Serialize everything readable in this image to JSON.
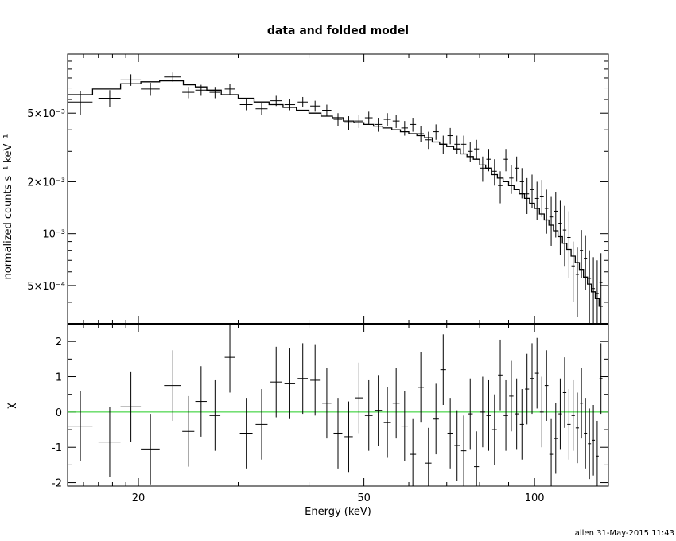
{
  "chart_data": [
    {
      "type": "line",
      "panel": "top",
      "title": "data and folded model",
      "xlabel": "",
      "ylabel": "normalized counts s⁻¹ keV⁻¹",
      "xscale": "log",
      "yscale": "log",
      "xlim": [
        15,
        135
      ],
      "ylim": [
        0.0003,
        0.011
      ],
      "ytick_labels": [
        {
          "value": 0.005,
          "label": "5×10⁻³"
        },
        {
          "value": 0.002,
          "label": "2×10⁻³"
        },
        {
          "value": 0.001,
          "label": "10⁻³"
        },
        {
          "value": 0.0005,
          "label": "5×10⁻⁴"
        }
      ],
      "series": [
        {
          "kind": "data-crosses",
          "x": [
            15.8,
            17.8,
            19.4,
            21.0,
            23.0,
            24.5,
            25.8,
            27.3,
            29.0,
            31.0,
            33.0,
            35.0,
            37.0,
            39.0,
            41.0,
            43.0,
            45.0,
            47.0,
            49.0,
            51.0,
            53.0,
            55.0,
            57.0,
            59.0,
            61.0,
            63.0,
            65.0,
            67.0,
            69.0,
            71.0,
            73.0,
            75.0,
            77.0,
            79.0,
            81.0,
            83.0,
            85.0,
            87.0,
            89.0,
            91.0,
            93.0,
            95.0,
            97.0,
            99.0,
            101.0,
            103.0,
            105.0,
            107.0,
            109.0,
            111.0,
            113.0,
            115.0,
            117.0,
            119.0,
            121.0,
            123.0,
            125.0,
            127.0,
            129.0,
            131.0
          ],
          "y": [
            0.0058,
            0.0061,
            0.0078,
            0.0069,
            0.0081,
            0.0066,
            0.0068,
            0.0066,
            0.0069,
            0.0056,
            0.0053,
            0.0059,
            0.0056,
            0.0058,
            0.0055,
            0.0052,
            0.0046,
            0.0044,
            0.0045,
            0.0047,
            0.0043,
            0.0046,
            0.0045,
            0.0041,
            0.0043,
            0.0038,
            0.0035,
            0.0039,
            0.0033,
            0.0037,
            0.0033,
            0.0033,
            0.003,
            0.0031,
            0.0024,
            0.0027,
            0.0023,
            0.0019,
            0.0027,
            0.0021,
            0.0024,
            0.002,
            0.0017,
            0.0018,
            0.0016,
            0.00165,
            0.0014,
            0.00125,
            0.00135,
            0.00115,
            0.00105,
            0.00095,
            0.00065,
            0.00058,
            0.0008,
            0.00072,
            0.00055,
            0.00048,
            0.00045,
            0.00052
          ],
          "xerr": [
            0.8,
            0.8,
            0.8,
            0.8,
            0.8,
            0.6,
            0.6,
            0.6,
            0.6,
            0.8,
            0.8,
            0.8,
            0.8,
            0.8,
            0.8,
            0.8,
            0.8,
            0.8,
            0.8,
            0.8,
            0.8,
            0.8,
            0.8,
            0.8,
            0.8,
            0.8,
            0.8,
            0.8,
            0.8,
            0.8,
            0.8,
            0.8,
            0.8,
            0.8,
            0.8,
            0.8,
            0.8,
            0.8,
            0.8,
            0.8,
            0.8,
            0.8,
            0.8,
            0.8,
            0.8,
            0.8,
            0.8,
            0.8,
            0.8,
            0.8,
            0.8,
            0.8,
            0.8,
            0.8,
            0.8,
            0.8,
            0.8,
            0.8,
            0.8,
            0.8
          ],
          "yerr": [
            0.0009,
            0.0007,
            0.0006,
            0.0006,
            0.0005,
            0.0005,
            0.0005,
            0.0005,
            0.0005,
            0.0004,
            0.0004,
            0.0004,
            0.0004,
            0.0004,
            0.0004,
            0.0004,
            0.0004,
            0.0004,
            0.0004,
            0.0004,
            0.0004,
            0.0004,
            0.0004,
            0.0004,
            0.0004,
            0.0004,
            0.0004,
            0.0004,
            0.0004,
            0.0004,
            0.0004,
            0.0004,
            0.0004,
            0.0004,
            0.0004,
            0.0004,
            0.0004,
            0.0004,
            0.0004,
            0.0004,
            0.0004,
            0.0004,
            0.0004,
            0.0004,
            0.0004,
            0.0004,
            0.0004,
            0.0004,
            0.0004,
            0.0004,
            0.0004,
            0.0004,
            0.00025,
            0.00025,
            0.00025,
            0.00025,
            0.00025,
            0.00025,
            0.00025,
            0.00025
          ]
        },
        {
          "kind": "model-step",
          "x_edges": [
            15,
            16.6,
            18.6,
            20.2,
            21.8,
            24.0,
            25.2,
            26.4,
            28.0,
            30.0,
            32.0,
            34.0,
            36.0,
            38.0,
            40.0,
            42.0,
            44.0,
            46.0,
            48.0,
            50.0,
            52.0,
            54.0,
            56.0,
            58.0,
            60.0,
            62.0,
            64.0,
            66.0,
            68.0,
            70.0,
            72.0,
            74.0,
            76.0,
            78.0,
            80.0,
            82.0,
            84.0,
            86.0,
            88.0,
            90.0,
            92.0,
            94.0,
            96.0,
            98.0,
            100.0,
            102.0,
            104.0,
            106.0,
            108.0,
            110.0,
            112.0,
            114.0,
            116.0,
            118.0,
            120.0,
            122.0,
            124.0,
            126.0,
            128.0,
            130.0,
            132.0
          ],
          "y": [
            0.0064,
            0.0069,
            0.0074,
            0.0076,
            0.0077,
            0.0073,
            0.0071,
            0.0068,
            0.0064,
            0.0061,
            0.0058,
            0.0056,
            0.0054,
            0.0052,
            0.005,
            0.0048,
            0.0047,
            0.0045,
            0.0044,
            0.0043,
            0.0042,
            0.0041,
            0.004,
            0.0039,
            0.0038,
            0.0037,
            0.0036,
            0.0034,
            0.0033,
            0.0032,
            0.0031,
            0.0029,
            0.0028,
            0.0027,
            0.0025,
            0.0024,
            0.0022,
            0.0021,
            0.002,
            0.0019,
            0.0018,
            0.0017,
            0.0016,
            0.0015,
            0.0014,
            0.0013,
            0.0012,
            0.00112,
            0.00104,
            0.00096,
            0.00088,
            0.00081,
            0.00074,
            0.00068,
            0.00062,
            0.00056,
            0.00051,
            0.00046,
            0.00042,
            0.00038
          ]
        }
      ]
    },
    {
      "type": "scatter",
      "panel": "bottom",
      "xlabel": "Energy (keV)",
      "ylabel": "χ",
      "xscale": "log",
      "xlim": [
        15,
        135
      ],
      "ylim": [
        -2.1,
        2.5
      ],
      "xticks": [
        20,
        50,
        100
      ],
      "yticks": [
        -2,
        -1,
        0,
        1,
        2
      ],
      "zero_line_color": "#22cc22",
      "series": [
        {
          "kind": "residual-crosses",
          "x": [
            15.8,
            17.8,
            19.4,
            21.0,
            23.0,
            24.5,
            25.8,
            27.3,
            29.0,
            31.0,
            33.0,
            35.0,
            37.0,
            39.0,
            41.0,
            43.0,
            45.0,
            47.0,
            49.0,
            51.0,
            53.0,
            55.0,
            57.0,
            59.0,
            61.0,
            63.0,
            65.0,
            67.0,
            69.0,
            71.0,
            73.0,
            75.0,
            77.0,
            79.0,
            81.0,
            83.0,
            85.0,
            87.0,
            89.0,
            91.0,
            93.0,
            95.0,
            97.0,
            99.0,
            101.0,
            103.0,
            105.0,
            107.0,
            109.0,
            111.0,
            113.0,
            115.0,
            117.0,
            119.0,
            121.0,
            123.0,
            125.0,
            127.0,
            129.0,
            131.0
          ],
          "y": [
            -0.4,
            -0.85,
            0.15,
            -1.05,
            0.75,
            -0.55,
            0.3,
            -0.1,
            1.55,
            -0.6,
            -0.35,
            0.85,
            0.8,
            0.95,
            0.9,
            0.25,
            -0.6,
            -0.7,
            0.4,
            -0.1,
            0.05,
            -0.3,
            0.25,
            -0.4,
            -1.2,
            0.7,
            -1.45,
            -0.2,
            1.2,
            -0.6,
            -0.95,
            -1.1,
            -0.05,
            -1.55,
            0.0,
            -0.1,
            -0.5,
            1.05,
            -0.1,
            0.45,
            -0.05,
            -0.35,
            0.65,
            0.95,
            1.1,
            0.0,
            0.75,
            -1.2,
            -0.75,
            -0.05,
            0.55,
            -0.35,
            -0.1,
            -0.45,
            0.25,
            -0.6,
            -0.9,
            -0.8,
            -1.25,
            0.95
          ],
          "xerr": [
            0.8,
            0.8,
            0.8,
            0.8,
            0.8,
            0.6,
            0.6,
            0.6,
            0.6,
            0.8,
            0.8,
            0.8,
            0.8,
            0.8,
            0.8,
            0.8,
            0.8,
            0.8,
            0.8,
            0.8,
            0.8,
            0.8,
            0.8,
            0.8,
            0.8,
            0.8,
            0.8,
            0.8,
            0.8,
            0.8,
            0.8,
            0.8,
            0.8,
            0.8,
            0.8,
            0.8,
            0.8,
            0.8,
            0.8,
            0.8,
            0.8,
            0.8,
            0.8,
            0.8,
            0.8,
            0.8,
            0.8,
            0.8,
            0.8,
            0.8,
            0.8,
            0.8,
            0.8,
            0.8,
            0.8,
            0.8,
            0.8,
            0.8,
            0.8,
            0.8
          ],
          "yerr": [
            1.0,
            1.0,
            1.0,
            1.0,
            1.0,
            1.0,
            1.0,
            1.0,
            1.0,
            1.0,
            1.0,
            1.0,
            1.0,
            1.0,
            1.0,
            1.0,
            1.0,
            1.0,
            1.0,
            1.0,
            1.0,
            1.0,
            1.0,
            1.0,
            1.0,
            1.0,
            1.0,
            1.0,
            1.0,
            1.0,
            1.0,
            1.0,
            1.0,
            1.0,
            1.0,
            1.0,
            1.0,
            1.0,
            1.0,
            1.0,
            1.0,
            1.0,
            1.0,
            1.0,
            1.0,
            1.0,
            1.0,
            1.0,
            1.0,
            1.0,
            1.0,
            1.0,
            1.0,
            1.0,
            1.0,
            1.0,
            1.0,
            1.0,
            1.0,
            1.0
          ]
        }
      ]
    }
  ],
  "footer": {
    "stamp": "allen 31-May-2015 11:43"
  }
}
